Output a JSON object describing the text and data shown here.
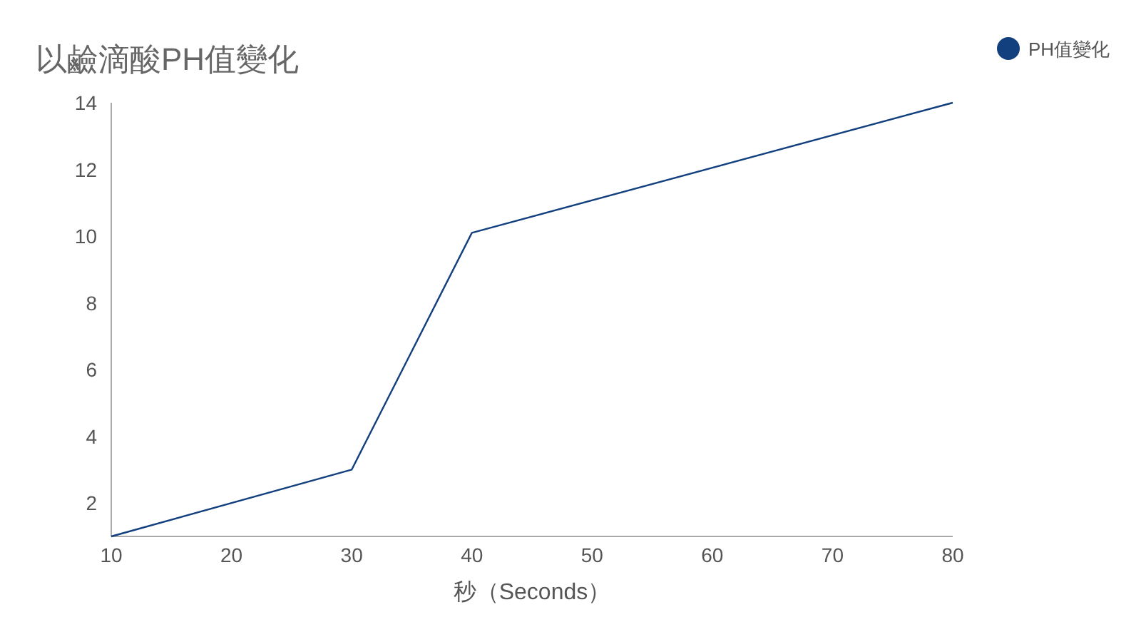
{
  "chart_data": {
    "type": "line",
    "title": "以鹼滴酸PH值變化",
    "xlabel": "秒（Seconds）",
    "x": [
      10,
      30,
      40,
      80
    ],
    "series": [
      {
        "name": "PH值變化",
        "color": "#123f7e",
        "values": [
          1,
          3,
          10.1,
          14
        ]
      }
    ],
    "xlim": [
      10,
      80
    ],
    "xticks": [
      10,
      20,
      30,
      40,
      50,
      60,
      70,
      80
    ],
    "ylim": [
      1,
      14
    ],
    "yticks": [
      2,
      4,
      6,
      8,
      10,
      12,
      14
    ],
    "grid": false,
    "legend": "top right",
    "marker": "none",
    "line_style": "solid"
  }
}
